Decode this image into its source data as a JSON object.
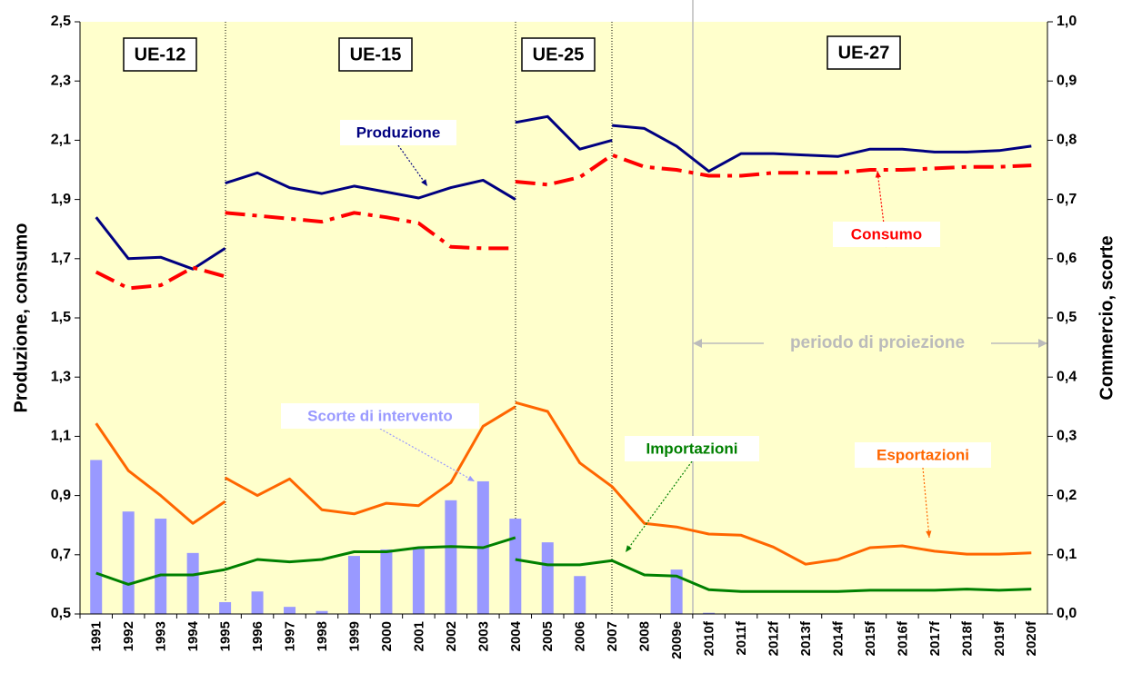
{
  "chart_data": {
    "type": "line",
    "ylabel": "Produzione, consumo",
    "y2label": "Commercio, scorte",
    "periods": [
      "UE-12",
      "UE-15",
      "UE-25",
      "UE-27"
    ],
    "projection_label": "periodo di proiezione",
    "categories": [
      "1991",
      "1992",
      "1993",
      "1994",
      "1995",
      "1996",
      "1997",
      "1998",
      "1999",
      "2000",
      "2001",
      "2002",
      "2003",
      "2004",
      "2005",
      "2006",
      "2007",
      "2008",
      "2009e",
      "2010f",
      "2011f",
      "2012f",
      "2013f",
      "2014f",
      "2015f",
      "2016f",
      "2017f",
      "2018f",
      "2019f",
      "2020f"
    ],
    "ylim": [
      0.5,
      2.5
    ],
    "yticks": [
      {
        "value": 0.5,
        "label": "0,5"
      },
      {
        "value": 0.7,
        "label": "0,7"
      },
      {
        "value": 0.9,
        "label": "0,9"
      },
      {
        "value": 1.1,
        "label": "1,1"
      },
      {
        "value": 1.3,
        "label": "1,3"
      },
      {
        "value": 1.5,
        "label": "1,5"
      },
      {
        "value": 1.7,
        "label": "1,7"
      },
      {
        "value": 1.9,
        "label": "1,9"
      },
      {
        "value": 2.1,
        "label": "2,1"
      },
      {
        "value": 2.3,
        "label": "2,3"
      },
      {
        "value": 2.5,
        "label": "2,5"
      }
    ],
    "y2lim": [
      0,
      1
    ],
    "y2ticks": [
      {
        "value": 0,
        "label": "0,0"
      },
      {
        "value": 0.1,
        "label": "0,1"
      },
      {
        "value": 0.2,
        "label": "0,2"
      },
      {
        "value": 0.3,
        "label": "0,3"
      },
      {
        "value": 0.4,
        "label": "0,4"
      },
      {
        "value": 0.5,
        "label": "0,5"
      },
      {
        "value": 0.6,
        "label": "0,6"
      },
      {
        "value": 0.7,
        "label": "0,7"
      },
      {
        "value": 0.8,
        "label": "0,8"
      },
      {
        "value": 0.9,
        "label": "0,9"
      },
      {
        "value": 1,
        "label": "1,0"
      }
    ],
    "annotations": [
      {
        "text": "Produzione",
        "color": "#000080"
      },
      {
        "text": "Consumo",
        "color": "#ff0000"
      },
      {
        "text": "Scorte di intervento",
        "color": "#9999ff"
      },
      {
        "text": "Importazioni",
        "color": "#008000"
      },
      {
        "text": "Esportazioni",
        "color": "#ff6600"
      }
    ],
    "series": [
      {
        "type": "bar",
        "axis": "y2",
        "color": "#9999ff",
        "values": [
          0.26,
          0.173,
          0.161,
          0.103,
          0.02,
          0.038,
          0.012,
          0.005,
          0.098,
          0.109,
          0.11,
          0.192,
          0.224,
          0.161,
          0.121,
          0.064,
          null,
          null,
          0.075,
          0.002,
          null,
          null,
          null,
          null,
          null,
          null,
          null,
          null,
          null,
          null
        ]
      },
      {
        "color": "#000080",
        "values": [
          1.84,
          1.7,
          1.705,
          1.665,
          1.735,
          null,
          null,
          null,
          null,
          null,
          null,
          null,
          null,
          null,
          null,
          null,
          null,
          null,
          null,
          null,
          null,
          null,
          null,
          null,
          null,
          null,
          null,
          null,
          null,
          null
        ]
      },
      {
        "color": "#000080",
        "values": [
          null,
          null,
          null,
          null,
          1.955,
          1.99,
          1.94,
          1.92,
          1.945,
          1.925,
          1.905,
          1.94,
          1.965,
          1.9,
          null,
          null,
          null,
          null,
          null,
          null,
          null,
          null,
          null,
          null,
          null,
          null,
          null,
          null,
          null,
          null
        ]
      },
      {
        "color": "#000080",
        "values": [
          null,
          null,
          null,
          null,
          null,
          null,
          null,
          null,
          null,
          null,
          null,
          null,
          null,
          2.16,
          2.18,
          2.07,
          2.1,
          null,
          null,
          null,
          null,
          null,
          null,
          null,
          null,
          null,
          null,
          null,
          null,
          null
        ]
      },
      {
        "color": "#000080",
        "values": [
          null,
          null,
          null,
          null,
          null,
          null,
          null,
          null,
          null,
          null,
          null,
          null,
          null,
          null,
          null,
          null,
          2.15,
          2.14,
          2.08,
          1.995,
          2.055,
          2.055,
          2.05,
          2.045,
          2.07,
          2.07,
          2.06,
          2.06,
          2.065,
          2.08
        ]
      },
      {
        "color": "#ff0000",
        "dash": true,
        "values": [
          1.655,
          1.6,
          1.61,
          1.67,
          1.64,
          null,
          null,
          null,
          null,
          null,
          null,
          null,
          null,
          null,
          null,
          null,
          null,
          null,
          null,
          null,
          null,
          null,
          null,
          null,
          null,
          null,
          null,
          null,
          null,
          null
        ]
      },
      {
        "color": "#ff0000",
        "dash": true,
        "values": [
          null,
          null,
          null,
          null,
          1.855,
          1.845,
          1.835,
          1.825,
          1.855,
          1.84,
          1.82,
          1.74,
          1.735,
          1.735,
          null,
          null,
          null,
          null,
          null,
          null,
          null,
          null,
          null,
          null,
          null,
          null,
          null,
          null,
          null,
          null
        ]
      },
      {
        "color": "#ff0000",
        "dash": true,
        "values": [
          null,
          null,
          null,
          null,
          null,
          null,
          null,
          null,
          null,
          null,
          null,
          null,
          null,
          1.96,
          1.95,
          1.975,
          2.05,
          2.01,
          2.0,
          1.98,
          1.98,
          1.99,
          1.99,
          1.99,
          2.0,
          2.0,
          2.005,
          2.01,
          2.01,
          2.015
        ]
      },
      {
        "color": "#ff6600",
        "axis": "y2",
        "values": [
          0.322,
          0.242,
          0.2,
          0.153,
          0.19,
          null,
          null,
          null,
          null,
          null,
          null,
          null,
          null,
          null,
          null,
          null,
          null,
          null,
          null,
          null,
          null,
          null,
          null,
          null,
          null,
          null,
          null,
          null,
          null,
          null
        ]
      },
      {
        "color": "#ff6600",
        "axis": "y2",
        "values": [
          null,
          null,
          null,
          null,
          0.23,
          0.2,
          0.228,
          0.176,
          0.169,
          0.187,
          0.183,
          0.222,
          0.317,
          0.35,
          null,
          null,
          null,
          null,
          null,
          null,
          null,
          null,
          null,
          null,
          null,
          null,
          null,
          null,
          null,
          null
        ]
      },
      {
        "color": "#ff6600",
        "axis": "y2",
        "values": [
          null,
          null,
          null,
          null,
          null,
          null,
          null,
          null,
          null,
          null,
          null,
          null,
          null,
          0.357,
          0.342,
          0.255,
          0.215,
          0.153,
          0.147,
          0.135,
          0.133,
          0.113,
          0.084,
          0.092,
          0.112,
          0.115,
          0.106,
          0.101,
          0.101,
          0.103
        ]
      },
      {
        "color": "#008000",
        "axis": "y2",
        "values": [
          0.069,
          0.05,
          0.066,
          0.066,
          0.075,
          null,
          null,
          null,
          null,
          null,
          null,
          null,
          null,
          null,
          null,
          null,
          null,
          null,
          null,
          null,
          null,
          null,
          null,
          null,
          null,
          null,
          null,
          null,
          null,
          null
        ]
      },
      {
        "color": "#008000",
        "axis": "y2",
        "values": [
          null,
          null,
          null,
          null,
          0.075,
          0.092,
          0.088,
          0.092,
          0.105,
          0.105,
          0.112,
          0.114,
          0.112,
          0.129,
          null,
          null,
          null,
          null,
          null,
          null,
          null,
          null,
          null,
          null,
          null,
          null,
          null,
          null,
          null,
          null
        ]
      },
      {
        "color": "#008000",
        "axis": "y2",
        "values": [
          null,
          null,
          null,
          null,
          null,
          null,
          null,
          null,
          null,
          null,
          null,
          null,
          null,
          0.092,
          0.083,
          0.083,
          0.09,
          0.066,
          0.064,
          0.041,
          0.038,
          0.038,
          0.038,
          0.038,
          0.04,
          0.04,
          0.04,
          0.042,
          0.04,
          0.042
        ]
      }
    ]
  }
}
